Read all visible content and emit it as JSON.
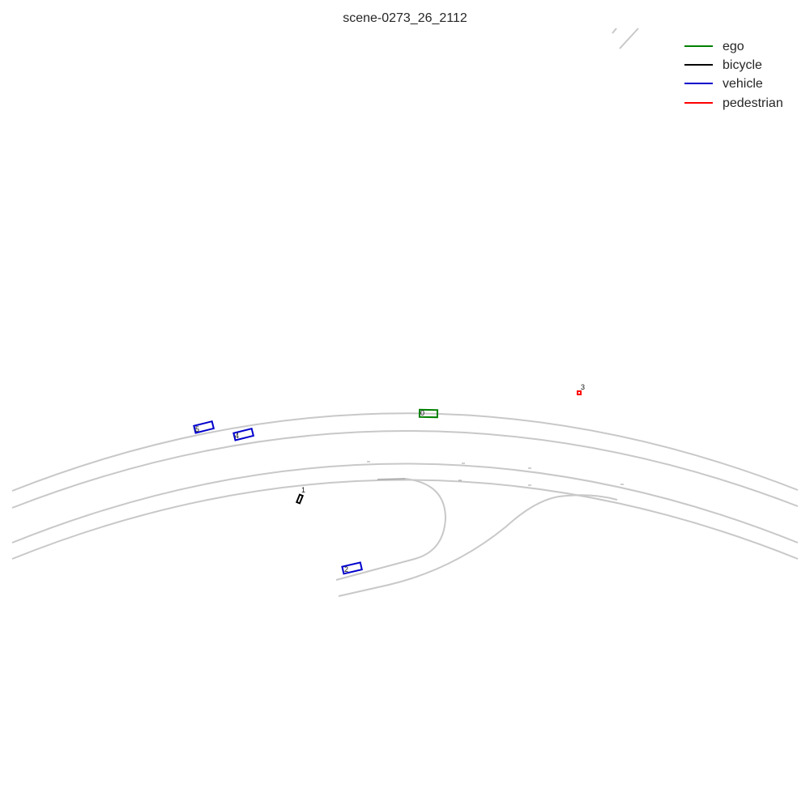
{
  "title": "scene-0273_26_2112",
  "legend": [
    {
      "label": "ego",
      "color": "#008000"
    },
    {
      "label": "bicycle",
      "color": "#000000"
    },
    {
      "label": "vehicle",
      "color": "#0000cc"
    },
    {
      "label": "pedestrian",
      "color": "#ff0000"
    }
  ],
  "agents": [
    {
      "id": "0",
      "type": "ego"
    },
    {
      "id": "1",
      "type": "bicycle"
    },
    {
      "id": "2",
      "type": "vehicle"
    },
    {
      "id": "3",
      "type": "pedestrian"
    },
    {
      "id": "4",
      "type": "vehicle"
    },
    {
      "id": "5",
      "type": "vehicle"
    }
  ],
  "colors": {
    "lane": "#c8c8c8",
    "background": "#ffffff"
  }
}
